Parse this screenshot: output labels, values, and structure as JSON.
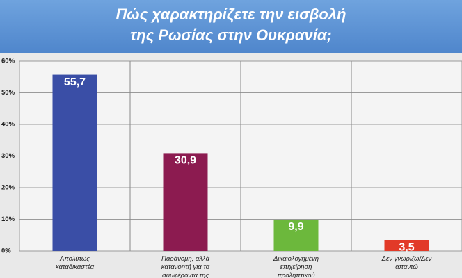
{
  "chart_data": {
    "type": "bar",
    "title": [
      "Πώς χαρακτηρίζετε την εισβολή",
      "της Ρωσίας στην Ουκρανία;"
    ],
    "categories": [
      "Απολύτως καταδικαστέα",
      "Παράνομη, αλλά κατανοητή για τα συμφέροντα της Ρωσίας",
      "Δικαιολογημένη επιχείρηση προληπτικού χαρακτήρα",
      "Δεν γνωρίζω/Δεν απαντώ"
    ],
    "values": [
      55.7,
      30.9,
      9.9,
      3.5
    ],
    "value_labels": [
      "55,7",
      "30,9",
      "9,9",
      "3,5"
    ],
    "colors": [
      "#3a4ea6",
      "#8c1b50",
      "#6cb83c",
      "#e23a28"
    ],
    "ylim": [
      0,
      60
    ],
    "yticks": [
      {
        "value": 0,
        "label": "0%"
      },
      {
        "value": 10,
        "label": "10%"
      },
      {
        "value": 20,
        "label": "20%"
      },
      {
        "value": 30,
        "label": "30%"
      },
      {
        "value": 40,
        "label": "40%"
      },
      {
        "value": 50,
        "label": "50%"
      },
      {
        "value": 60,
        "label": "60%"
      }
    ],
    "grid": true
  }
}
